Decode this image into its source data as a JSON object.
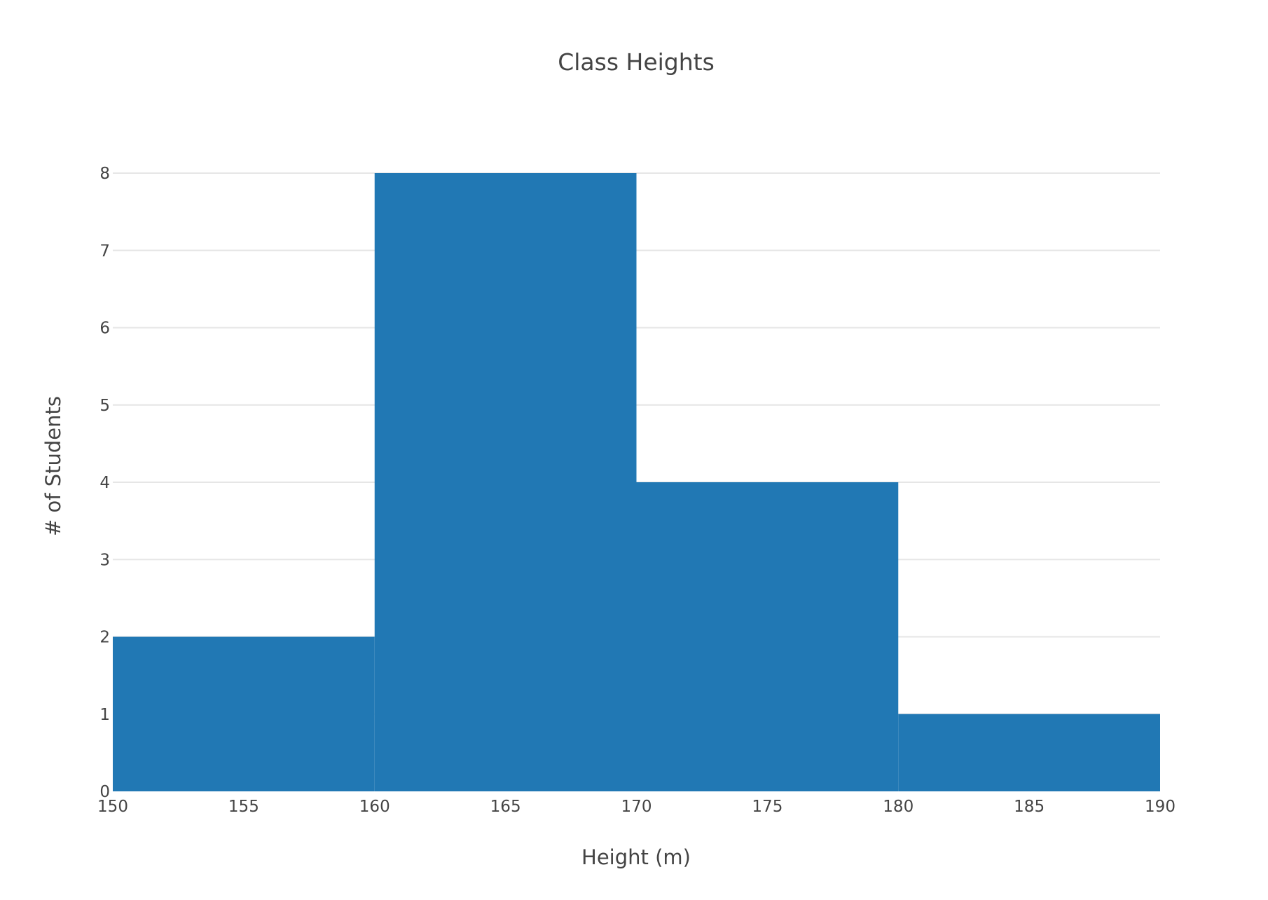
{
  "chart_data": {
    "type": "bar",
    "title": "Class Heights",
    "xlabel": "Height (m)",
    "ylabel": "# of Students",
    "bins": [
      {
        "start": 150,
        "end": 160,
        "count": 2
      },
      {
        "start": 160,
        "end": 170,
        "count": 8
      },
      {
        "start": 170,
        "end": 180,
        "count": 4
      },
      {
        "start": 180,
        "end": 190,
        "count": 1
      }
    ],
    "xlim": [
      150,
      190
    ],
    "ylim": [
      0,
      8
    ],
    "x_ticks": [
      "150",
      "155",
      "160",
      "165",
      "170",
      "175",
      "180",
      "185",
      "190"
    ],
    "y_ticks": [
      "0",
      "1",
      "2",
      "3",
      "4",
      "5",
      "6",
      "7",
      "8"
    ],
    "grid": true,
    "bar_color": "#2178b4"
  }
}
